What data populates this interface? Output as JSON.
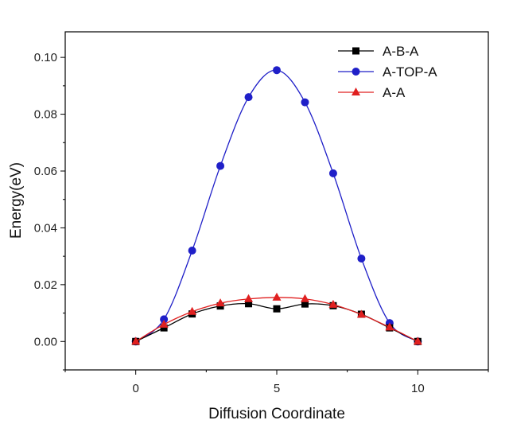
{
  "chart_data": {
    "type": "line",
    "title": "",
    "xlabel": "Diffusion Coordinate",
    "ylabel": "Energy(eV)",
    "xlim": [
      -2.5,
      12.5
    ],
    "ylim": [
      -0.01,
      0.109
    ],
    "xticks": [
      0,
      5,
      10
    ],
    "xtick_labels": [
      "0",
      "5",
      "10"
    ],
    "yticks": [
      0.0,
      0.02,
      0.04,
      0.06,
      0.08,
      0.1
    ],
    "ytick_labels": [
      "0.00",
      "0.02",
      "0.04",
      "0.06",
      "0.08",
      "0.10"
    ],
    "grid": false,
    "legend_position": "top-right",
    "x": [
      0,
      1,
      2,
      3,
      4,
      5,
      6,
      7,
      8,
      9,
      10
    ],
    "series": [
      {
        "name": "A-B-A",
        "marker": "square",
        "color": "#000000",
        "values": [
          0.0,
          0.0048,
          0.0097,
          0.0125,
          0.0133,
          0.0115,
          0.0132,
          0.0126,
          0.0096,
          0.0048,
          0.0
        ]
      },
      {
        "name": "A-TOP-A",
        "marker": "circle",
        "color": "#1f1fc8",
        "values": [
          0.0,
          0.0078,
          0.032,
          0.0618,
          0.086,
          0.0955,
          0.0842,
          0.0592,
          0.0292,
          0.0065,
          0.0
        ]
      },
      {
        "name": "A-A",
        "marker": "triangle",
        "color": "#e02020",
        "values": [
          0.0,
          0.006,
          0.0105,
          0.0135,
          0.015,
          0.0155,
          0.015,
          0.013,
          0.0095,
          0.005,
          0.0
        ]
      }
    ]
  }
}
